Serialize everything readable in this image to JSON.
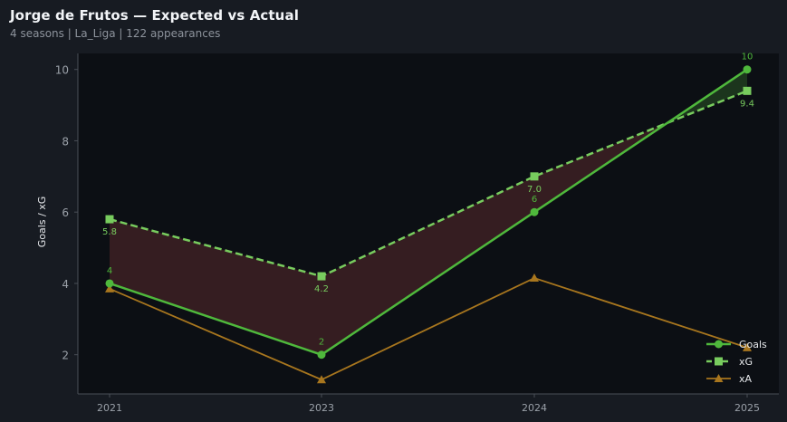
{
  "header": {
    "title": "Jorge de Frutos — Expected vs Actual",
    "subtitle": "4 seasons | La_Liga | 122 appearances"
  },
  "colors": {
    "background": "#171b22",
    "plot_background": "#0c0f14",
    "goals": "#4fb83c",
    "xg": "#78cc5e",
    "xa": "#a8761e",
    "under_fill": "#3a1f22",
    "over_fill": "#1e3a1e"
  },
  "chart_data": {
    "type": "line",
    "title": "Jorge de Frutos — Expected vs Actual",
    "subtitle": "4 seasons | La_Liga | 122 appearances",
    "xlabel": "",
    "ylabel": "Goals / xG",
    "categories": [
      "2021",
      "2023",
      "2024",
      "2025"
    ],
    "ylim": [
      0.9,
      10.45
    ],
    "yticks": [
      2,
      4,
      6,
      8,
      10
    ],
    "grid": false,
    "legend_position": "bottom-right",
    "series": [
      {
        "name": "Goals",
        "values": [
          4,
          2,
          6,
          10
        ],
        "labels": [
          "4",
          "2",
          "6",
          "10"
        ],
        "marker": "circle",
        "style": "solid"
      },
      {
        "name": "xG",
        "values": [
          5.8,
          4.2,
          7.0,
          9.4
        ],
        "labels": [
          "5.8",
          "4.2",
          "7.0",
          "9.4"
        ],
        "marker": "square",
        "style": "dashed"
      },
      {
        "name": "xA",
        "values": [
          3.85,
          1.3,
          4.15,
          2.2
        ],
        "marker": "triangle",
        "style": "solid"
      }
    ]
  }
}
